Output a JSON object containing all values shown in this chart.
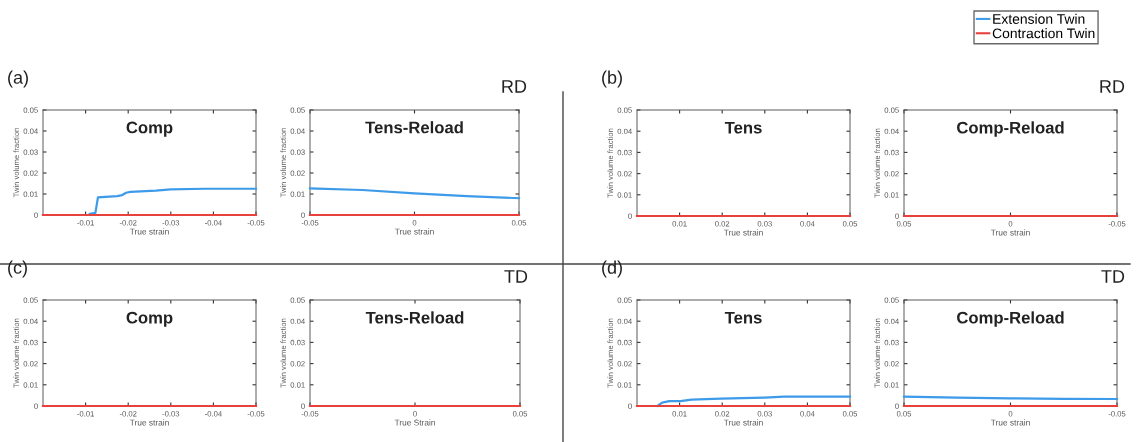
{
  "chart_data": [
    {
      "type": "line",
      "title": "Comp",
      "xlabel": "True strain",
      "ylabel": "Twin volume fraction",
      "annotations": [
        "(a)"
      ],
      "xlim": [
        0,
        -0.05
      ],
      "xticks": [
        -0.01,
        -0.02,
        -0.03,
        -0.04,
        -0.05
      ],
      "ylim": [
        0,
        0.05
      ],
      "yticks": [
        0,
        0.01,
        0.02,
        0.03,
        0.04,
        0.05
      ],
      "series": [
        {
          "color": "#3d9be9",
          "x": [
            -0.011,
            -0.0123,
            -0.0129,
            -0.0174,
            -0.0186,
            -0.0195,
            -0.0205,
            -0.0265,
            -0.03,
            -0.038,
            -0.05
          ],
          "values": [
            0.0005,
            0.001,
            0.0084,
            0.009,
            0.0095,
            0.0106,
            0.011,
            0.0116,
            0.0122,
            0.0125,
            0.0125
          ]
        },
        {
          "color": "#e8413c",
          "x": [
            0,
            -0.05
          ],
          "values": [
            0,
            0
          ]
        }
      ]
    },
    {
      "type": "line",
      "title": "Tens-Reload",
      "xlabel": "True strain",
      "ylabel": "Twin volume fraction",
      "annotations": [
        "RD"
      ],
      "xlim": [
        -0.05,
        0.05
      ],
      "xticks": [
        -0.05,
        0,
        0.05
      ],
      "ylim": [
        0,
        0.05
      ],
      "yticks": [
        0,
        0.01,
        0.02,
        0.03,
        0.04,
        0.05
      ],
      "series": [
        {
          "color": "#3d9be9",
          "x": [
            -0.05,
            -0.025,
            0,
            0.025,
            0.05
          ],
          "values": [
            0.0127,
            0.0119,
            0.0103,
            0.009,
            0.008
          ]
        },
        {
          "color": "#e8413c",
          "x": [
            -0.05,
            0.05
          ],
          "values": [
            0,
            0
          ]
        }
      ]
    },
    {
      "type": "line",
      "title": "Tens",
      "xlabel": "True strain",
      "ylabel": "Twin volume fraction",
      "annotations": [
        "(b)"
      ],
      "xlim": [
        0,
        0.05
      ],
      "xticks": [
        0.01,
        0.02,
        0.03,
        0.04,
        0.05
      ],
      "ylim": [
        0,
        0.05
      ],
      "yticks": [
        0,
        0.01,
        0.02,
        0.03,
        0.04,
        0.05
      ],
      "series": [
        {
          "color": "#e8413c",
          "x": [
            0,
            0.05
          ],
          "values": [
            0,
            0
          ]
        }
      ]
    },
    {
      "type": "line",
      "title": "Comp-Reload",
      "xlabel": "True strain",
      "ylabel": "Twin volume fraction",
      "annotations": [
        "RD"
      ],
      "xlim": [
        0.05,
        -0.05
      ],
      "xticks": [
        0.05,
        0,
        -0.05
      ],
      "ylim": [
        0,
        0.05
      ],
      "yticks": [
        0,
        0.01,
        0.02,
        0.03,
        0.04,
        0.05
      ],
      "series": [
        {
          "color": "#e8413c",
          "x": [
            0.05,
            -0.05
          ],
          "values": [
            0,
            0
          ]
        }
      ]
    },
    {
      "type": "line",
      "title": "Comp",
      "xlabel": "True strain",
      "ylabel": "Twin volume fraction",
      "annotations": [
        "(c)"
      ],
      "xlim": [
        0,
        -0.05
      ],
      "xticks": [
        -0.01,
        -0.02,
        -0.03,
        -0.04,
        -0.05
      ],
      "ylim": [
        0,
        0.05
      ],
      "yticks": [
        0,
        0.01,
        0.02,
        0.03,
        0.04,
        0.05
      ],
      "series": [
        {
          "color": "#e8413c",
          "x": [
            0,
            -0.05
          ],
          "values": [
            0,
            0
          ]
        }
      ]
    },
    {
      "type": "line",
      "title": "Tens-Reload",
      "xlabel": "True Strain",
      "ylabel": "Twin volume fraction",
      "annotations": [
        "TD"
      ],
      "xlim": [
        -0.05,
        0.05
      ],
      "xticks": [
        -0.05,
        0,
        0.05
      ],
      "ylim": [
        0,
        0.05
      ],
      "yticks": [
        0,
        0.01,
        0.02,
        0.03,
        0.04,
        0.05
      ],
      "series": [
        {
          "color": "#e8413c",
          "x": [
            -0.05,
            0.05
          ],
          "values": [
            0,
            0
          ]
        }
      ]
    },
    {
      "type": "line",
      "title": "Tens",
      "xlabel": "True strain",
      "ylabel": "Twin volume fraction",
      "annotations": [
        "(d)"
      ],
      "legend": "top right",
      "xlim": [
        0,
        0.05
      ],
      "xticks": [
        0.01,
        0.02,
        0.03,
        0.04,
        0.05
      ],
      "ylim": [
        0,
        0.05
      ],
      "yticks": [
        0,
        0.01,
        0.02,
        0.03,
        0.04,
        0.05
      ],
      "series": [
        {
          "name": "Extension Twin",
          "color": "#3d9be9",
          "x": [
            0.0048,
            0.0059,
            0.0076,
            0.0102,
            0.0128,
            0.0197,
            0.03,
            0.0345,
            0.05
          ],
          "values": [
            0,
            0.0016,
            0.0023,
            0.0023,
            0.003,
            0.0035,
            0.004,
            0.0044,
            0.0044
          ]
        },
        {
          "name": "Contraction Twin",
          "color": "#e8413c",
          "x": [
            0,
            0.05
          ],
          "values": [
            0,
            0
          ]
        }
      ]
    },
    {
      "type": "line",
      "title": "Comp-Reload",
      "xlabel": "True strain",
      "ylabel": "Twin volume fraction",
      "annotations": [
        "TD"
      ],
      "xlim": [
        0.05,
        -0.05
      ],
      "xticks": [
        0.05,
        0,
        -0.05
      ],
      "ylim": [
        0,
        0.05
      ],
      "yticks": [
        0,
        0.01,
        0.02,
        0.03,
        0.04,
        0.05
      ],
      "series": [
        {
          "color": "#3d9be9",
          "x": [
            0.05,
            0.025,
            0,
            -0.025,
            -0.05
          ],
          "values": [
            0.0044,
            0.004,
            0.0036,
            0.0034,
            0.0033
          ]
        },
        {
          "color": "#e8413c",
          "x": [
            0.05,
            -0.05
          ],
          "values": [
            0,
            0
          ]
        }
      ]
    }
  ]
}
